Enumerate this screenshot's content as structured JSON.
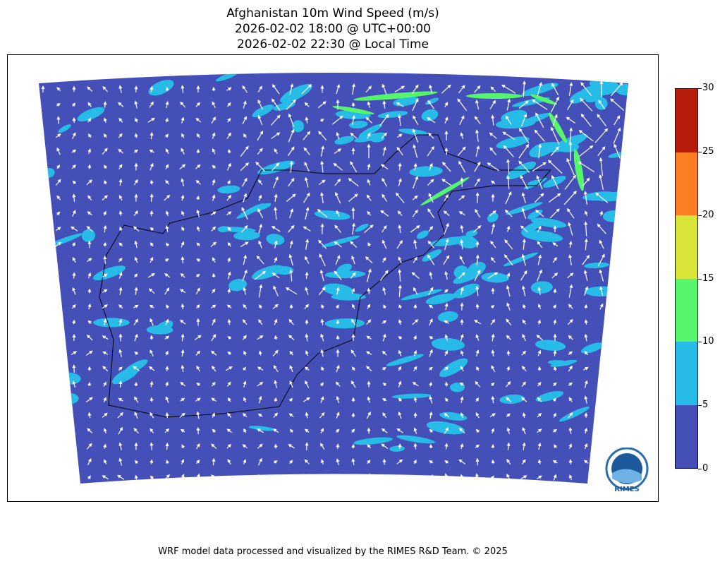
{
  "title": {
    "line1": "Afghanistan 10m Wind Speed (m/s)",
    "line2": "2026-02-02 18:00 @ UTC+00:00",
    "line3": "2026-02-02 22:30 @ Local Time"
  },
  "colorbar": {
    "ticks": [
      "0",
      "5",
      "10",
      "15",
      "20",
      "25",
      "30"
    ],
    "bins": [
      {
        "min": 0,
        "max": 5,
        "color": "#4450b8"
      },
      {
        "min": 5,
        "max": 10,
        "color": "#27bbe8"
      },
      {
        "min": 10,
        "max": 15,
        "color": "#55f56c"
      },
      {
        "min": 15,
        "max": 20,
        "color": "#d9e438"
      },
      {
        "min": 20,
        "max": 25,
        "color": "#fb7e22"
      },
      {
        "min": 25,
        "max": 30,
        "color": "#b51c0b"
      }
    ]
  },
  "logo": {
    "text": "RIMES",
    "ring_text": "Regional Integrated Multi-Hazard Early Warning System"
  },
  "footer": "WRF model data processed and visualized by the RIMES R&D Team. © 2025"
}
